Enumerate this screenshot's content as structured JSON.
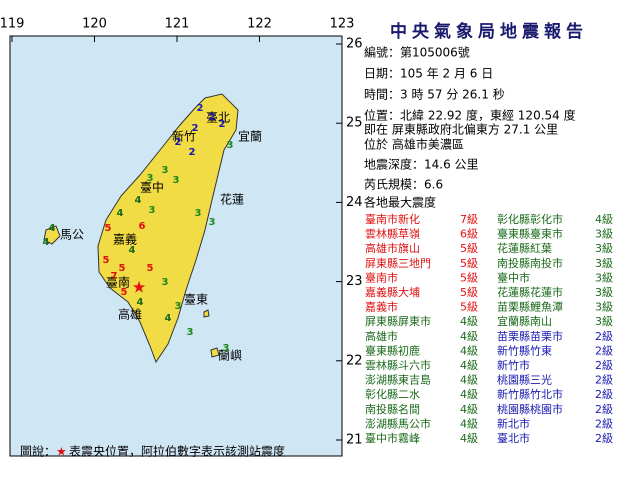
{
  "title": "中央氣象局地震報告",
  "info": [
    "編號：第105006號",
    "日期：105 年 2 月 6 日",
    "時間：3 時 57 分 26.1 秒",
    "位置：北緯 22.92 度，東經 120.54 度",
    "即在 屏東縣政府北偏東方 27.1 公里",
    "位於 高雄市美濃區",
    "地震深度：14.6 公里",
    "芮氏規模：6.6",
    "各地最大震度"
  ],
  "table": {
    "left": [
      {
        "place": "臺南市新化",
        "level": "7級",
        "color": "#e01010"
      },
      {
        "place": "雲林縣草嶺",
        "level": "6級",
        "color": "#e01010"
      },
      {
        "place": "高雄市旗山",
        "level": "5級",
        "color": "#e01010"
      },
      {
        "place": "屏東縣三地門",
        "level": "5級",
        "color": "#e01010"
      },
      {
        "place": "臺南市",
        "level": "5級",
        "color": "#e01010"
      },
      {
        "place": "嘉義縣大埔",
        "level": "5級",
        "color": "#e01010"
      },
      {
        "place": "嘉義市",
        "level": "5級",
        "color": "#e01010"
      },
      {
        "place": "屏東縣屏東市",
        "level": "4級",
        "color": "#1a6a1a"
      },
      {
        "place": "高雄市",
        "level": "4級",
        "color": "#1a6a1a"
      },
      {
        "place": "臺東縣初鹿",
        "level": "4級",
        "color": "#1a6a1a"
      },
      {
        "place": "雲林縣斗六市",
        "level": "4級",
        "color": "#1a6a1a"
      },
      {
        "place": "澎湖縣東吉島",
        "level": "4級",
        "color": "#1a6a1a"
      },
      {
        "place": "彰化縣二水",
        "level": "4級",
        "color": "#1a6a1a"
      },
      {
        "place": "南投縣名間",
        "level": "4級",
        "color": "#1a6a1a"
      },
      {
        "place": "澎湖縣馬公市",
        "level": "4級",
        "color": "#1a6a1a"
      },
      {
        "place": "臺中市霧峰",
        "level": "4級",
        "color": "#1a6a1a"
      }
    ],
    "right": [
      {
        "place": "彰化縣彰化市",
        "level": "4級",
        "color": "#1a6a1a"
      },
      {
        "place": "臺東縣臺東市",
        "level": "3級",
        "color": "#1a6a1a"
      },
      {
        "place": "花蓮縣紅葉",
        "level": "3級",
        "color": "#1a6a1a"
      },
      {
        "place": "南投縣南投市",
        "level": "3級",
        "color": "#1a6a1a"
      },
      {
        "place": "臺中市",
        "level": "3級",
        "color": "#1a6a1a"
      },
      {
        "place": "花蓮縣花蓮市",
        "level": "3級",
        "color": "#1a6a1a"
      },
      {
        "place": "苗栗縣鯉魚潭",
        "level": "3級",
        "color": "#1a6a1a"
      },
      {
        "place": "宜蘭縣南山",
        "level": "3級",
        "color": "#1a6a1a"
      },
      {
        "place": "苗栗縣苗栗市",
        "level": "2級",
        "color": "#1a1ab0"
      },
      {
        "place": "新竹縣竹東",
        "level": "2級",
        "color": "#1a1ab0"
      },
      {
        "place": "新竹市",
        "level": "2級",
        "color": "#1a1ab0"
      },
      {
        "place": "桃園縣三光",
        "level": "2級",
        "color": "#1a1ab0"
      },
      {
        "place": "新竹縣竹北市",
        "level": "2級",
        "color": "#1a1ab0"
      },
      {
        "place": "桃園縣桃園市",
        "level": "2級",
        "color": "#1a1ab0"
      },
      {
        "place": "新北市",
        "level": "2級",
        "color": "#1a1ab0"
      },
      {
        "place": "臺北市",
        "level": "2級",
        "color": "#1a1ab0"
      }
    ]
  },
  "map": {
    "lon_ticks": [
      119,
      120,
      121,
      122,
      123
    ],
    "lat_ticks": [
      26,
      25,
      24,
      23,
      22,
      21
    ],
    "epicenter": {
      "lat": 22.92,
      "lon": 120.54
    },
    "place_labels": [
      "臺北",
      "新竹",
      "宜蘭",
      "臺中",
      "花蓮",
      "嘉義",
      "馬公",
      "臺南",
      "高雄",
      "臺東",
      "蘭嶼"
    ],
    "intensity_digits": [
      2,
      2,
      2,
      2,
      2,
      2,
      3,
      3,
      3,
      3,
      4,
      3,
      3,
      3,
      4,
      5,
      6,
      4,
      5,
      5,
      7,
      5,
      5,
      4,
      3,
      3,
      4,
      3,
      4,
      4,
      3
    ],
    "digit_colors": {
      "2": "#1a1ab0",
      "3": "#1a8a1a",
      "4": "#1a6a1a",
      "5": "#e01010",
      "6": "#e01010",
      "7": "#e01010"
    }
  },
  "legend": {
    "prefix": "圖說：",
    "star": "★",
    "text": "表震央位置，阿拉伯數字表示該測站震度"
  }
}
